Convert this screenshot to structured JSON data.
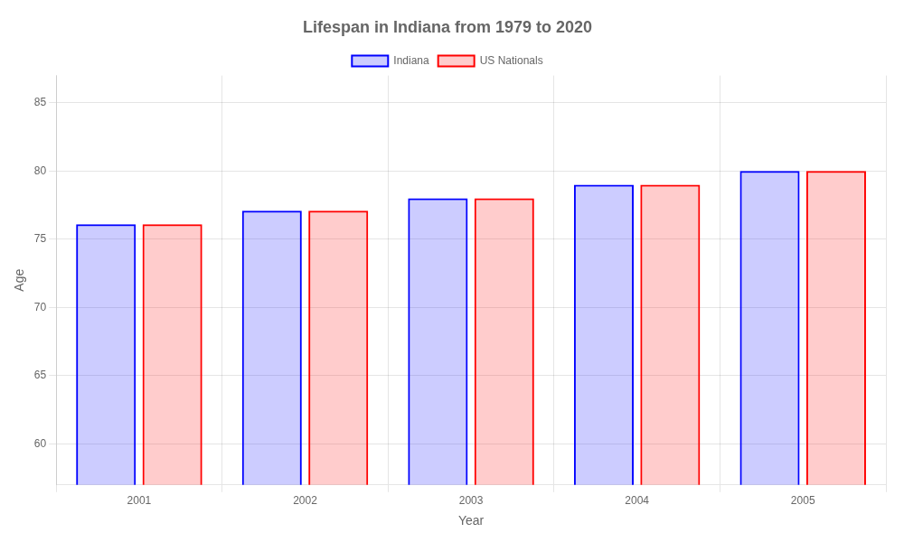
{
  "chart_data": {
    "type": "bar",
    "title": "Lifespan in Indiana from 1979 to 2020",
    "xlabel": "Year",
    "ylabel": "Age",
    "categories": [
      "2001",
      "2002",
      "2003",
      "2004",
      "2005"
    ],
    "series": [
      {
        "name": "Indiana",
        "color": "#0000ff",
        "values": [
          76.1,
          77.1,
          78.0,
          79.0,
          80.0
        ]
      },
      {
        "name": "US Nationals",
        "color": "#ff0000",
        "values": [
          76.1,
          77.1,
          78.0,
          79.0,
          80.0
        ]
      }
    ],
    "ylim": [
      57,
      87
    ],
    "yticks": [
      60,
      65,
      70,
      75,
      80,
      85
    ],
    "grid": true,
    "legend": "top"
  }
}
